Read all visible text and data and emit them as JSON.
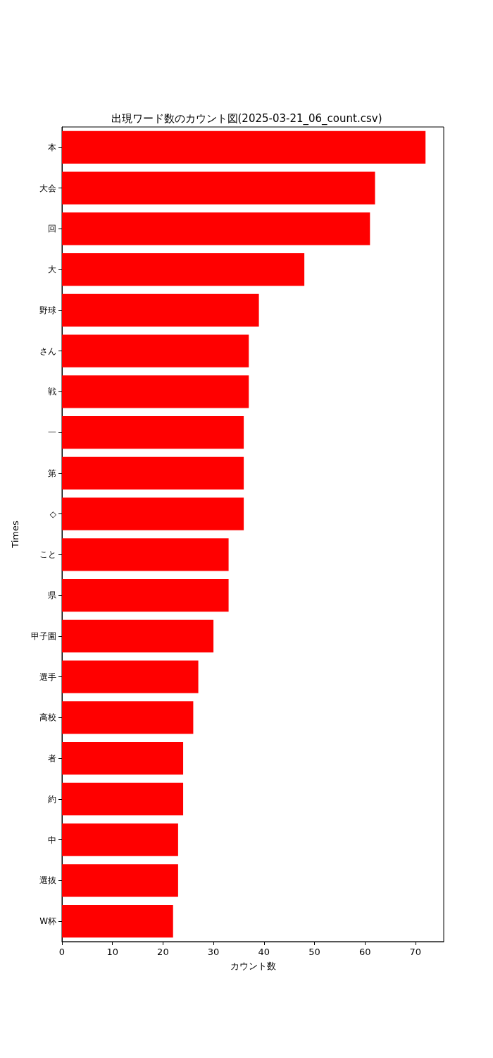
{
  "chart_data": {
    "type": "bar",
    "orientation": "horizontal",
    "title": "出現ワード数のカウント図(2025-03-21_06_count.csv)",
    "xlabel": "カウント数",
    "ylabel": "Times",
    "categories": [
      "本",
      "大会",
      "回",
      "大",
      "野球",
      "さん",
      "戦",
      "一",
      "第",
      "◇",
      "こと",
      "県",
      "甲子園",
      "選手",
      "高校",
      "者",
      "約",
      "中",
      "選抜",
      "W杯"
    ],
    "values": [
      72,
      62,
      61,
      48,
      39,
      37,
      37,
      36,
      36,
      36,
      33,
      33,
      30,
      27,
      26,
      24,
      24,
      23,
      23,
      22
    ],
    "color": "#ff0000",
    "xlim": [
      0,
      75.6
    ],
    "xticks": [
      0,
      10,
      20,
      30,
      40,
      50,
      60,
      70
    ]
  }
}
